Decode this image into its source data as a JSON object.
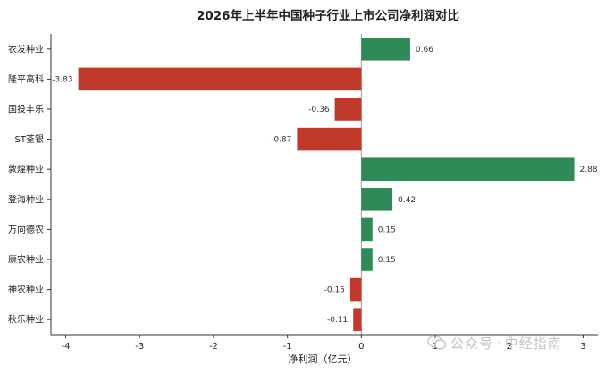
{
  "chart_data": {
    "type": "bar",
    "orientation": "horizontal",
    "title": "2026年上半年中国种子行业上市公司净利润对比",
    "xlabel": "净利润（亿元）",
    "ylabel": "",
    "xlim": [
      -4.2,
      3.2
    ],
    "xticks": [
      -4,
      -3,
      -2,
      -1,
      0,
      1,
      2,
      3
    ],
    "categories": [
      "农发种业",
      "隆平高科",
      "国投丰乐",
      "ST荃银",
      "敦煌种业",
      "登海种业",
      "万向德农",
      "康农种业",
      "神农种业",
      "秋乐种业"
    ],
    "values": [
      0.66,
      -3.83,
      -0.36,
      -0.87,
      2.88,
      0.42,
      0.15,
      0.15,
      -0.15,
      -0.11
    ],
    "data_labels": [
      "0.66",
      "-3.83",
      "-0.36",
      "-0.87",
      "2.88",
      "0.42",
      "0.15",
      "0.15",
      "-0.15",
      "-0.11"
    ],
    "colors": {
      "positive": "#2e8b57",
      "negative": "#c0392b"
    },
    "grid": false
  },
  "watermark": {
    "icon": "wechat-icon",
    "account": "公众号",
    "separator": "·",
    "name": "中经指南"
  }
}
